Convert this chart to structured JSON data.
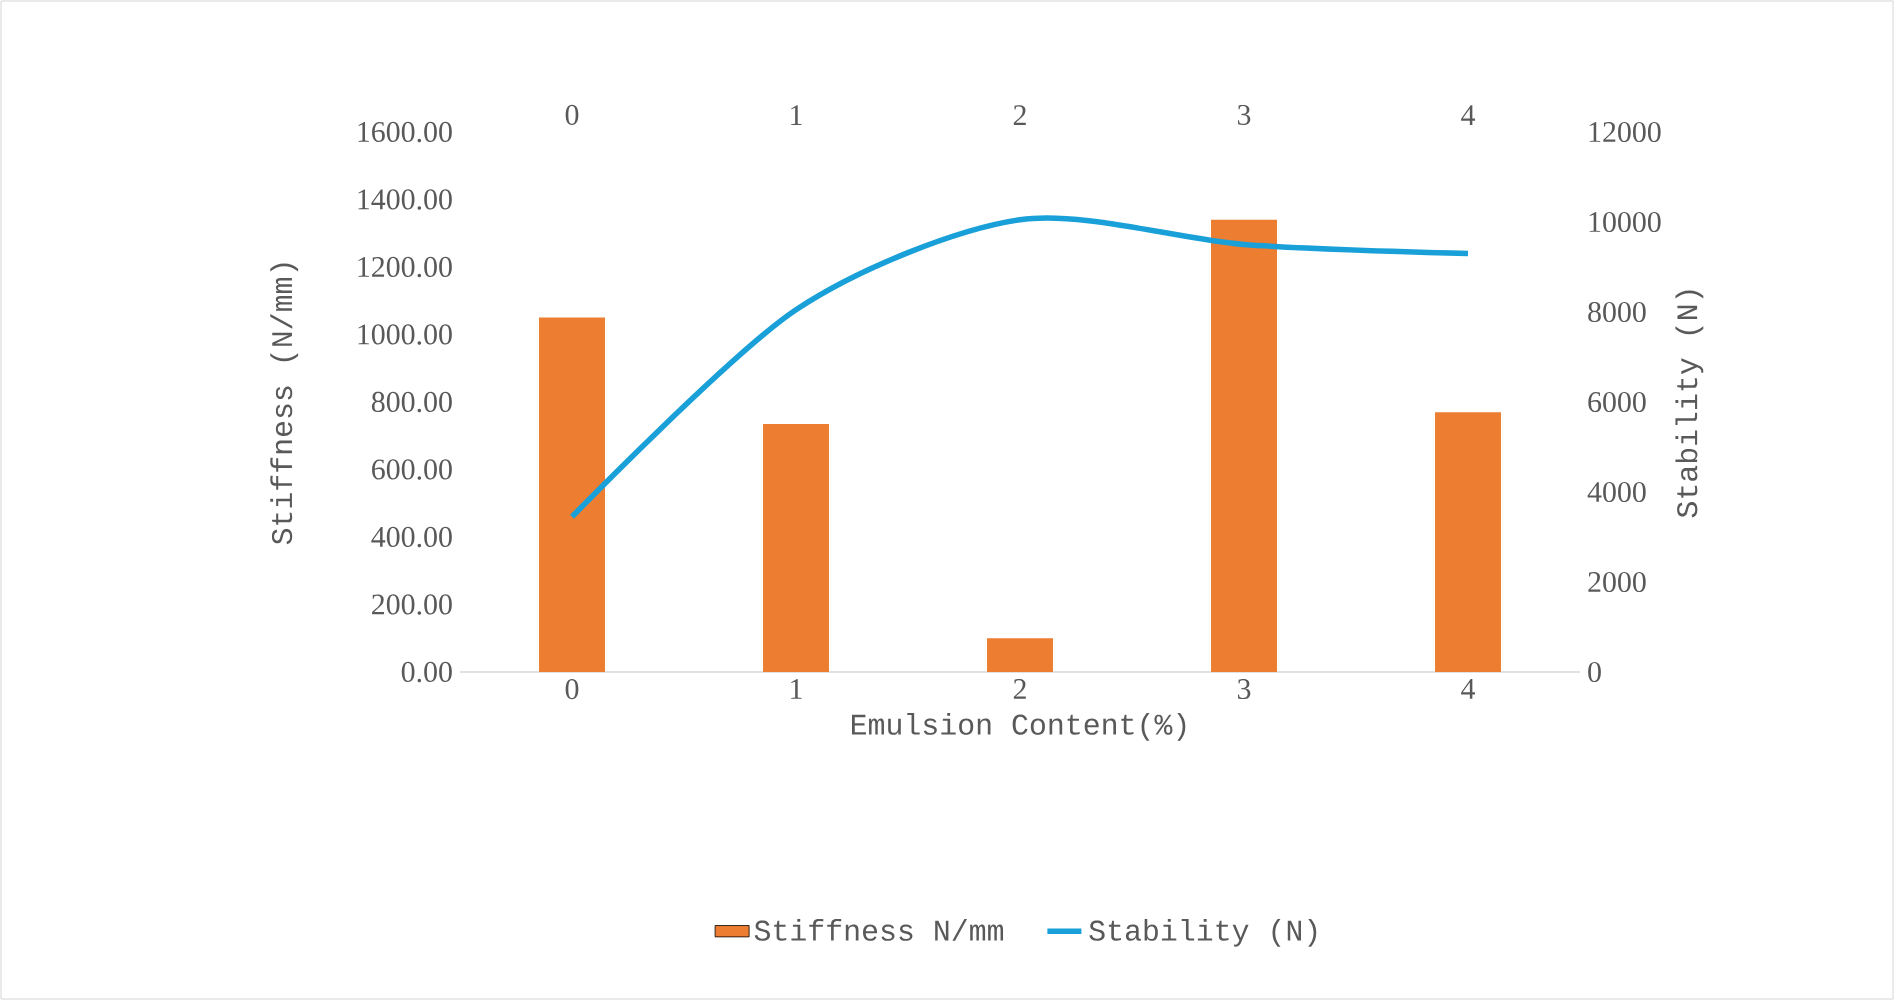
{
  "chart_data": {
    "type": "bar",
    "categories": [
      "0",
      "1",
      "2",
      "3",
      "4"
    ],
    "series": [
      {
        "name": "Stiffness N/mm",
        "color": "#ed7d31",
        "values": [
          1050,
          735,
          100,
          1340,
          770
        ]
      },
      {
        "name": "Stability (N)",
        "type": "line",
        "axis": "y2",
        "color": "#1aa0d8",
        "values": [
          3450,
          8050,
          10050,
          9500,
          9300
        ]
      }
    ],
    "xlabel": "Emulsion Content(%)",
    "ylabel": "Stiffness (N/mm)",
    "y2label": "Stability (N)",
    "ylim": [
      0,
      1600
    ],
    "yticks": [
      {
        "value": 0,
        "label": "0.00"
      },
      {
        "value": 200,
        "label": "200.00"
      },
      {
        "value": 400,
        "label": "400.00"
      },
      {
        "value": 600,
        "label": "600.00"
      },
      {
        "value": 800,
        "label": "800.00"
      },
      {
        "value": 1000,
        "label": "1000.00"
      },
      {
        "value": 1200,
        "label": "1200.00"
      },
      {
        "value": 1400,
        "label": "1400.00"
      },
      {
        "value": 1600,
        "label": "1600.00"
      }
    ],
    "y2lim": [
      0,
      12000
    ],
    "y2ticks": [
      0,
      2000,
      4000,
      6000,
      8000,
      10000,
      12000
    ],
    "legend": "bottom"
  }
}
